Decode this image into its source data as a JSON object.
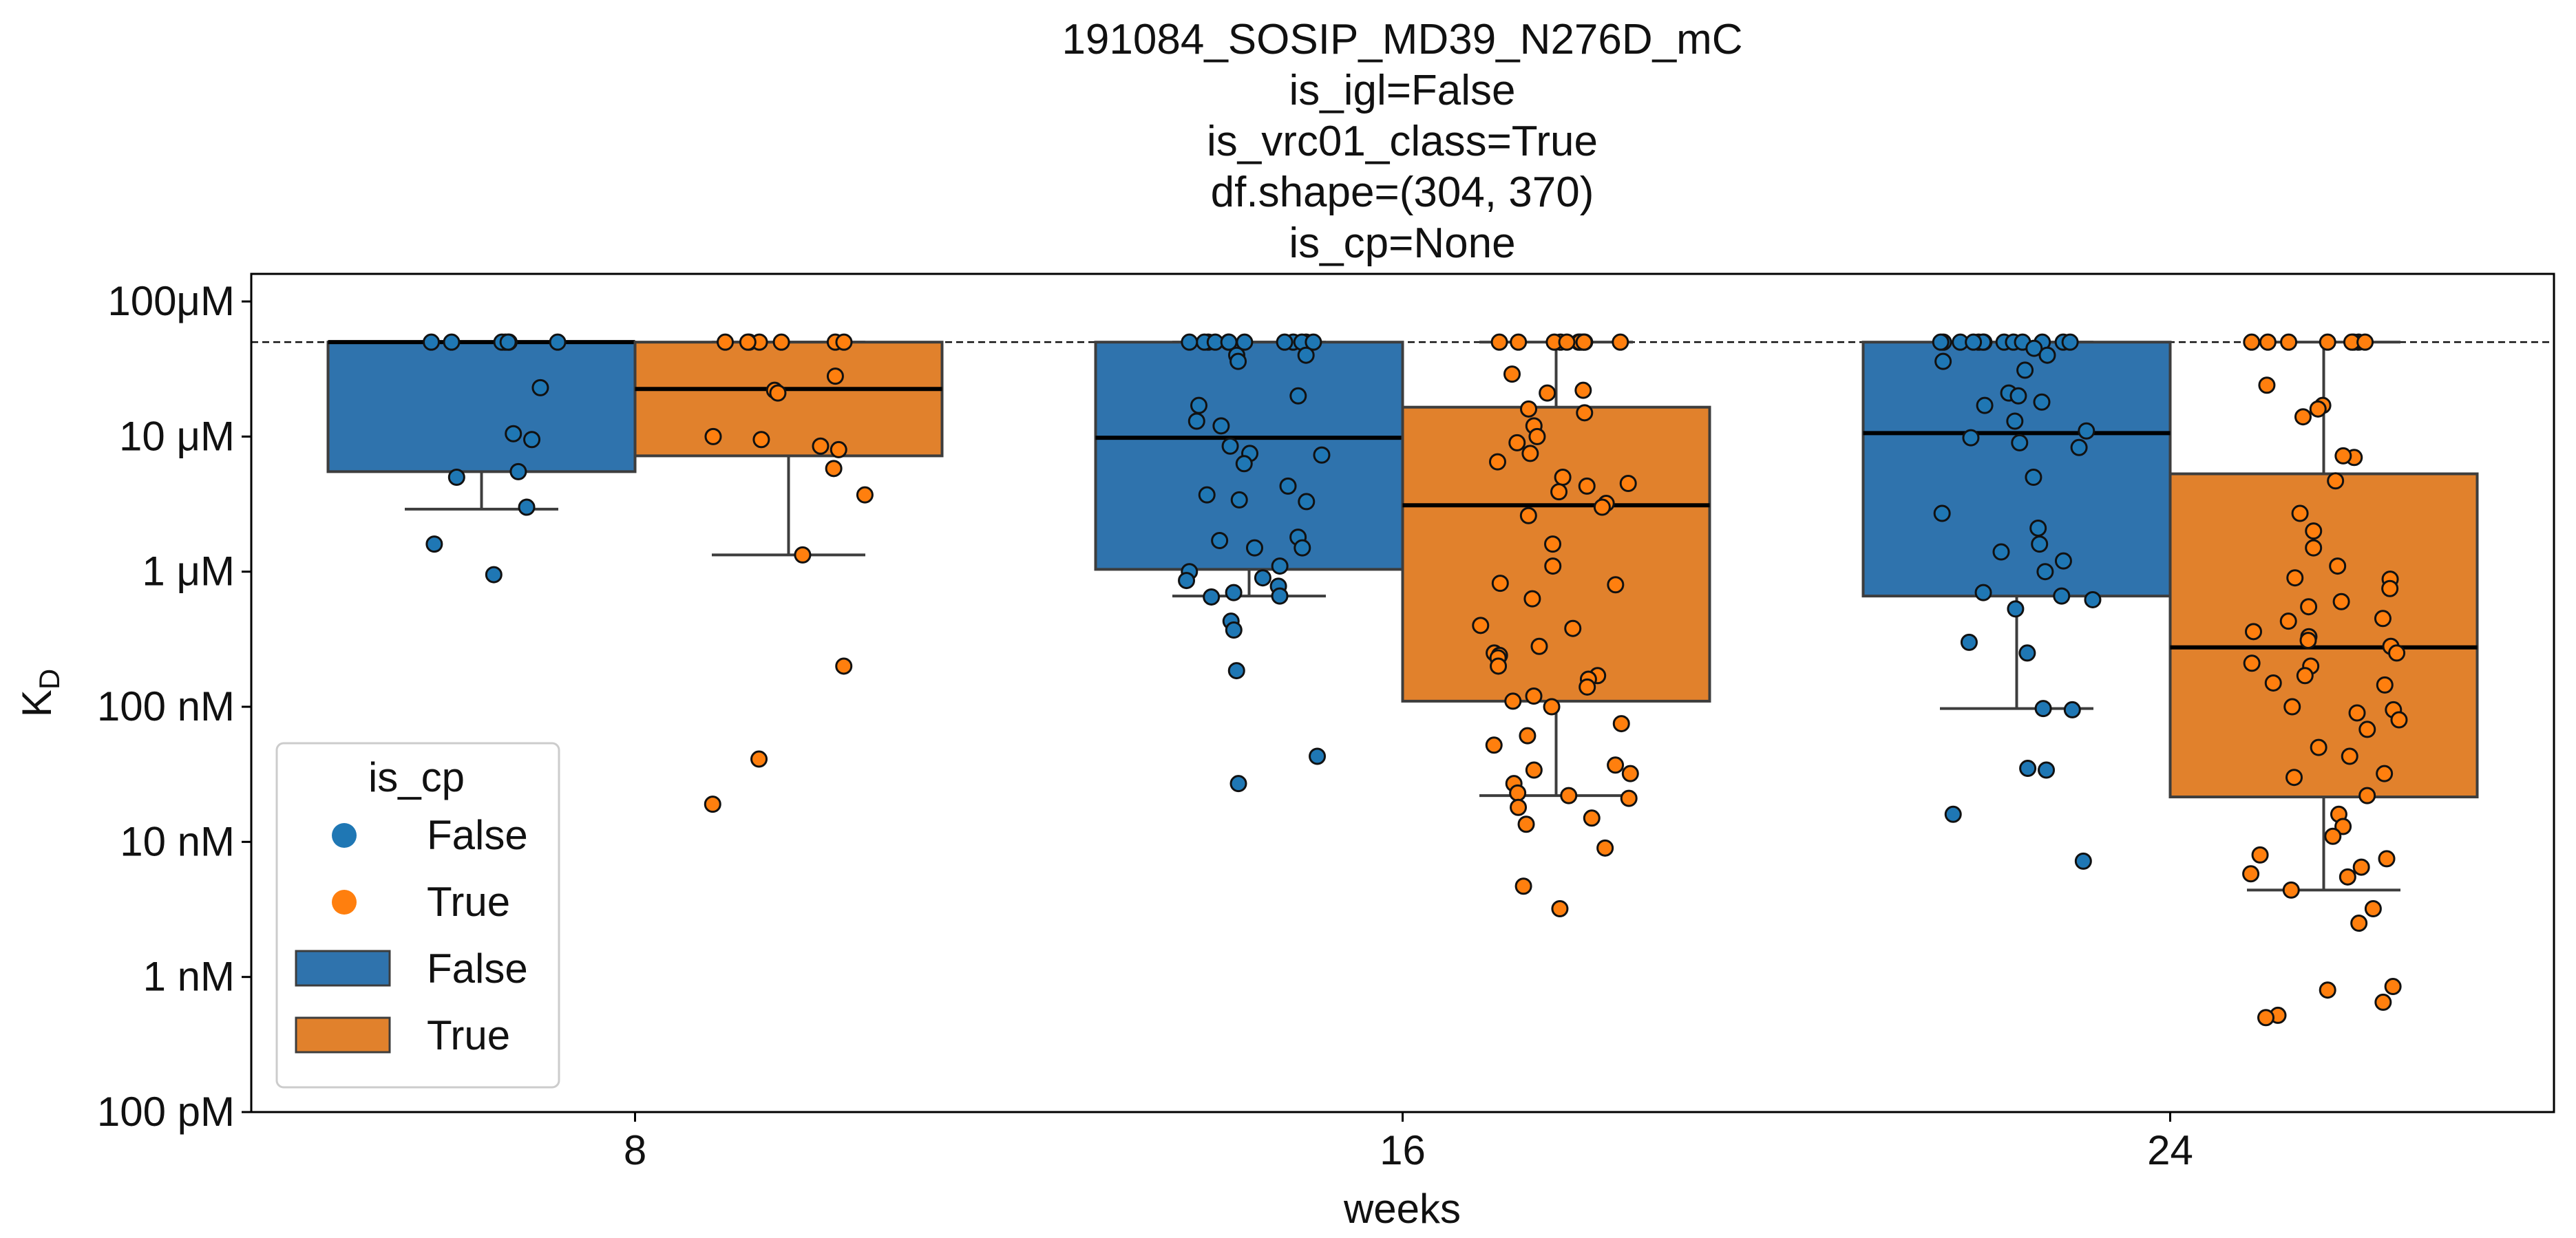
{
  "chart_data": {
    "type": "box",
    "title_lines": [
      "191084_SOSIP_MD39_N276D_mC",
      "is_igl=False",
      "is_vrc01_class=True",
      "df.shape=(304, 370)",
      "is_cp=None"
    ],
    "xlabel": "weeks",
    "ylabel_main": "K",
    "ylabel_sub": "D",
    "y_scale": "log",
    "y_unit": "M",
    "ylim": [
      1e-10,
      0.00016
    ],
    "y_ticks": [
      {
        "value": 1e-10,
        "label": "100 pM"
      },
      {
        "value": 1e-09,
        "label": "1 nM"
      },
      {
        "value": 1e-08,
        "label": "10 nM"
      },
      {
        "value": 1e-07,
        "label": "100 nM"
      },
      {
        "value": 1e-06,
        "label": "1 μM"
      },
      {
        "value": 1e-05,
        "label": "10 μM"
      },
      {
        "value": 0.0001,
        "label": "100μM"
      }
    ],
    "reference_line": 5e-05,
    "categories": [
      "8",
      "16",
      "24"
    ],
    "hue_colors": {
      "False": "#2f73ad",
      "True": "#e1812c"
    },
    "point_colors": {
      "False": "#1f77b4",
      "True": "#ff7f0e"
    },
    "legend": {
      "title": "is_cp",
      "placement": "lower-left",
      "entries": [
        {
          "kind": "point",
          "label": "False",
          "hue": "False"
        },
        {
          "kind": "point",
          "label": "True",
          "hue": "True"
        },
        {
          "kind": "box",
          "label": "False",
          "hue": "False"
        },
        {
          "kind": "box",
          "label": "True",
          "hue": "True"
        }
      ]
    },
    "series": [
      {
        "name": "False",
        "boxes": [
          {
            "category": "8",
            "whislo": 2.9e-06,
            "q1": 5.5e-06,
            "median": 5e-05,
            "q3": 5e-05,
            "whishi": 5e-05,
            "points": [
              5e-05,
              5e-05,
              5e-05,
              5e-05,
              5e-05,
              5e-05,
              5e-05,
              2.3e-05,
              1.05e-05,
              9.5e-06,
              5.5e-06,
              5e-06,
              3e-06,
              1.6e-06,
              9.5e-07
            ]
          },
          {
            "category": "16",
            "whislo": 6.6e-07,
            "q1": 1.04e-06,
            "median": 9.8e-06,
            "q3": 5e-05,
            "whishi": 5e-05,
            "points": [
              5e-05,
              5e-05,
              5e-05,
              5e-05,
              5e-05,
              5e-05,
              5e-05,
              5e-05,
              5e-05,
              5e-05,
              5e-05,
              5e-05,
              4e-05,
              4e-05,
              3.6e-05,
              2e-05,
              1.7e-05,
              1.3e-05,
              1.2e-05,
              8.5e-06,
              7.5e-06,
              7.3e-06,
              6.3e-06,
              4.3e-06,
              3.7e-06,
              3.4e-06,
              3.3e-06,
              1.8e-06,
              1.7e-06,
              1.5e-06,
              1.5e-06,
              1.1e-06,
              1e-06,
              9e-07,
              8.6e-07,
              7.8e-07,
              7e-07,
              6.6e-07,
              6.5e-07,
              4.3e-07,
              3.7e-07,
              1.85e-07,
              4.3e-08,
              2.7e-08
            ]
          },
          {
            "category": "24",
            "whislo": 9.7e-08,
            "q1": 6.6e-07,
            "median": 1.06e-05,
            "q3": 5e-05,
            "whishi": 5e-05,
            "points": [
              5e-05,
              5e-05,
              5e-05,
              5e-05,
              5e-05,
              5e-05,
              5e-05,
              5e-05,
              5e-05,
              5e-05,
              5e-05,
              5e-05,
              5e-05,
              4.5e-05,
              4e-05,
              3.6e-05,
              3.1e-05,
              2.1e-05,
              2e-05,
              1.8e-05,
              1.7e-05,
              1.3e-05,
              1.1e-05,
              9.8e-06,
              9e-06,
              8.3e-06,
              5e-06,
              2.7e-06,
              2.1e-06,
              1.6e-06,
              1.4e-06,
              1.2e-06,
              1e-06,
              7e-07,
              6.6e-07,
              6.2e-07,
              5.3e-07,
              3e-07,
              2.5e-07,
              9.7e-08,
              9.5e-08,
              3.5e-08,
              3.4e-08,
              1.6e-08,
              7.2e-09
            ]
          }
        ]
      },
      {
        "name": "True",
        "boxes": [
          {
            "category": "8",
            "whislo": 1.33e-06,
            "q1": 7.2e-06,
            "median": 2.25e-05,
            "q3": 5e-05,
            "whishi": 5e-05,
            "points": [
              5e-05,
              5e-05,
              5e-05,
              5e-05,
              5e-05,
              5e-05,
              5e-05,
              2.8e-05,
              2.2e-05,
              2.1e-05,
              1e-05,
              9.5e-06,
              8.5e-06,
              8e-06,
              5.8e-06,
              3.7e-06,
              1.33e-06,
              2e-07,
              4.1e-08,
              1.9e-08
            ]
          },
          {
            "category": "16",
            "whislo": 2.2e-08,
            "q1": 1.1e-07,
            "median": 3.1e-06,
            "q3": 1.65e-05,
            "whishi": 5e-05,
            "points": [
              5e-05,
              5e-05,
              5e-05,
              5e-05,
              5e-05,
              5e-05,
              5e-05,
              5e-05,
              5e-05,
              5e-05,
              5e-05,
              2.9e-05,
              2.2e-05,
              2.1e-05,
              1.6e-05,
              1.5e-05,
              1.2e-05,
              1e-05,
              9e-06,
              7.5e-06,
              6.5e-06,
              5e-06,
              4.5e-06,
              4.3e-06,
              3.9e-06,
              3.2e-06,
              3e-06,
              2.6e-06,
              1.6e-06,
              1.1e-06,
              8.2e-07,
              8e-07,
              6.3e-07,
              4e-07,
              3.8e-07,
              2.8e-07,
              2.5e-07,
              2.4e-07,
              2.3e-07,
              2e-07,
              1.7e-07,
              1.6e-07,
              1.4e-07,
              1.2e-07,
              1.1e-07,
              1e-07,
              7.5e-08,
              6.1e-08,
              5.2e-08,
              3.7e-08,
              3.4e-08,
              3.2e-08,
              2.7e-08,
              2.3e-08,
              2.2e-08,
              2.1e-08,
              1.8e-08,
              1.5e-08,
              1.35e-08,
              9e-09,
              4.7e-09,
              3.2e-09
            ]
          },
          {
            "category": "24",
            "whislo": 4.4e-09,
            "q1": 2.15e-08,
            "median": 2.75e-07,
            "q3": 5.3e-06,
            "whishi": 5e-05,
            "points": [
              5e-05,
              5e-05,
              5e-05,
              5e-05,
              5e-05,
              5e-05,
              5e-05,
              5e-05,
              2.4e-05,
              1.7e-05,
              1.6e-05,
              1.4e-05,
              7e-06,
              7.2e-06,
              4.7e-06,
              2.7e-06,
              2e-06,
              1.5e-06,
              1.1e-06,
              9e-07,
              8.8e-07,
              7.5e-07,
              6e-07,
              5.5e-07,
              4.5e-07,
              4.3e-07,
              3.6e-07,
              3.3e-07,
              3.1e-07,
              2.8e-07,
              2.5e-07,
              2.1e-07,
              2e-07,
              1.7e-07,
              1.5e-07,
              1.45e-07,
              1e-07,
              9.5e-08,
              9e-08,
              8e-08,
              6.8e-08,
              5e-08,
              4.3e-08,
              3.2e-08,
              3e-08,
              2.2e-08,
              1.6e-08,
              1.3e-08,
              1.1e-08,
              8e-09,
              7.5e-09,
              6.5e-09,
              5.8e-09,
              5.5e-09,
              4.4e-09,
              3.2e-09,
              2.5e-09,
              8.5e-10,
              8e-10,
              6.5e-10,
              5.2e-10,
              5e-10
            ]
          }
        ]
      }
    ]
  }
}
